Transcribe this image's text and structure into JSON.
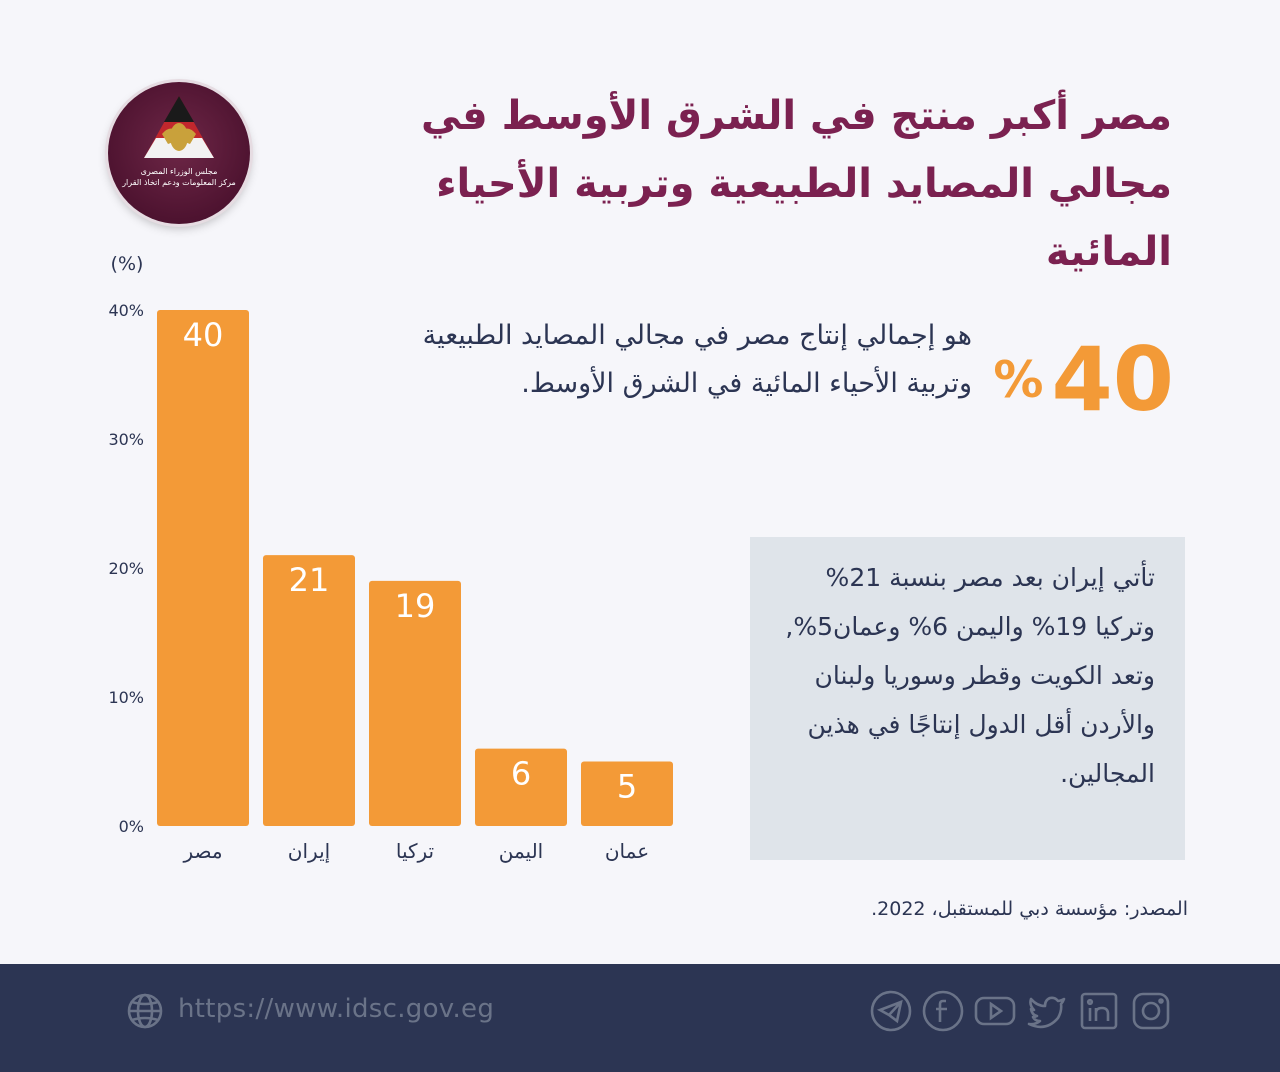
{
  "logo": {
    "caption_line1": "مجلس الوزراء المصرى",
    "caption_line2": "مركز المعلومات ودعم اتخاذ القرار"
  },
  "title": "مصر أكبر منتج في الشرق الأوسط في مجالي المصايد الطبيعية وتربية الأحياء المائية",
  "highlight": {
    "value": "40",
    "percent_sign": "%",
    "description": "هو إجمالي إنتاج مصر في مجالي المصايد الطبيعية وتربية الأحياء المائية  في الشرق الأوسط."
  },
  "info_box": {
    "text": "تأتي إيران بعد مصر بنسبة 21% وتركيا 19% واليمن 6% وعمان5%, وتعد الكويت وقطر وسوريا ولبنان والأردن أقل الدول إنتاجًا في هذين المجالين."
  },
  "source": "المصدر: مؤسسة دبي للمستقبل، 2022.",
  "footer": {
    "url": "https://www.idsc.gov.eg",
    "social": [
      "telegram-icon",
      "facebook-icon",
      "youtube-icon",
      "twitter-icon",
      "linkedin-icon",
      "instagram-icon"
    ],
    "icon_color": "#6a7388"
  },
  "colors": {
    "bar": "#f39a37",
    "title": "#7b2150",
    "text": "#2c3553",
    "footer_bg": "#2c3553"
  },
  "chart_data": {
    "type": "bar",
    "ylabel": "(%)",
    "categories": [
      "مصر",
      "إيران",
      "تركيا",
      "اليمن",
      "عمان"
    ],
    "values": [
      40,
      21,
      19,
      6,
      5
    ],
    "value_labels": [
      "40",
      "21",
      "19",
      "6",
      "5"
    ],
    "yticks": [
      "0%",
      "10%",
      "20%",
      "30%",
      "40%"
    ],
    "ytick_values": [
      0,
      10,
      20,
      30,
      40
    ],
    "ylim": [
      0,
      40
    ],
    "grid": false
  }
}
